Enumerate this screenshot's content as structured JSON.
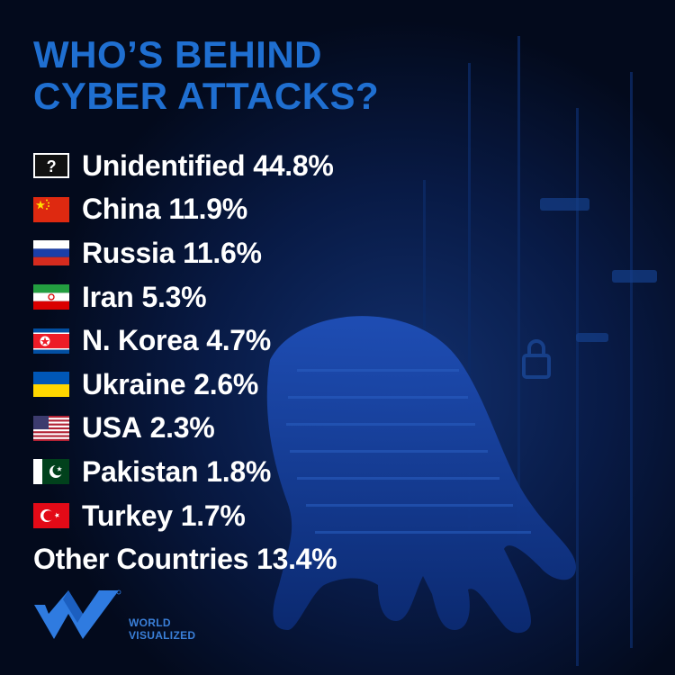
{
  "colors": {
    "background": "#030a1c",
    "title": "#1f6fd1",
    "label_text": "#ffffff",
    "brand_text": "#3a7fd8"
  },
  "chart_data": {
    "type": "table",
    "title_lines": [
      "WHO’S BEHIND",
      "CYBER ATTACKS?"
    ],
    "rows": [
      {
        "label": "Unidentified",
        "value": "44.8%",
        "icon": "question-mark-icon"
      },
      {
        "label": "China",
        "value": "11.9%",
        "icon": "china-flag-icon"
      },
      {
        "label": "Russia",
        "value": "11.6%",
        "icon": "russia-flag-icon"
      },
      {
        "label": "Iran",
        "value": "5.3%",
        "icon": "iran-flag-icon"
      },
      {
        "label": "N. Korea",
        "value": "4.7%",
        "icon": "north-korea-flag-icon"
      },
      {
        "label": "Ukraine",
        "value": "2.6%",
        "icon": "ukraine-flag-icon"
      },
      {
        "label": "USA",
        "value": "2.3%",
        "icon": "usa-flag-icon"
      },
      {
        "label": "Pakistan",
        "value": "1.8%",
        "icon": "pakistan-flag-icon"
      },
      {
        "label": "Turkey",
        "value": "1.7%",
        "icon": "turkey-flag-icon"
      },
      {
        "label": "Other Countries",
        "value": "13.4%",
        "icon": ""
      }
    ]
  },
  "brand": {
    "line1": "WORLD",
    "line2": "VISUALIZED",
    "logo_icon": "world-visualized-logo-icon"
  }
}
